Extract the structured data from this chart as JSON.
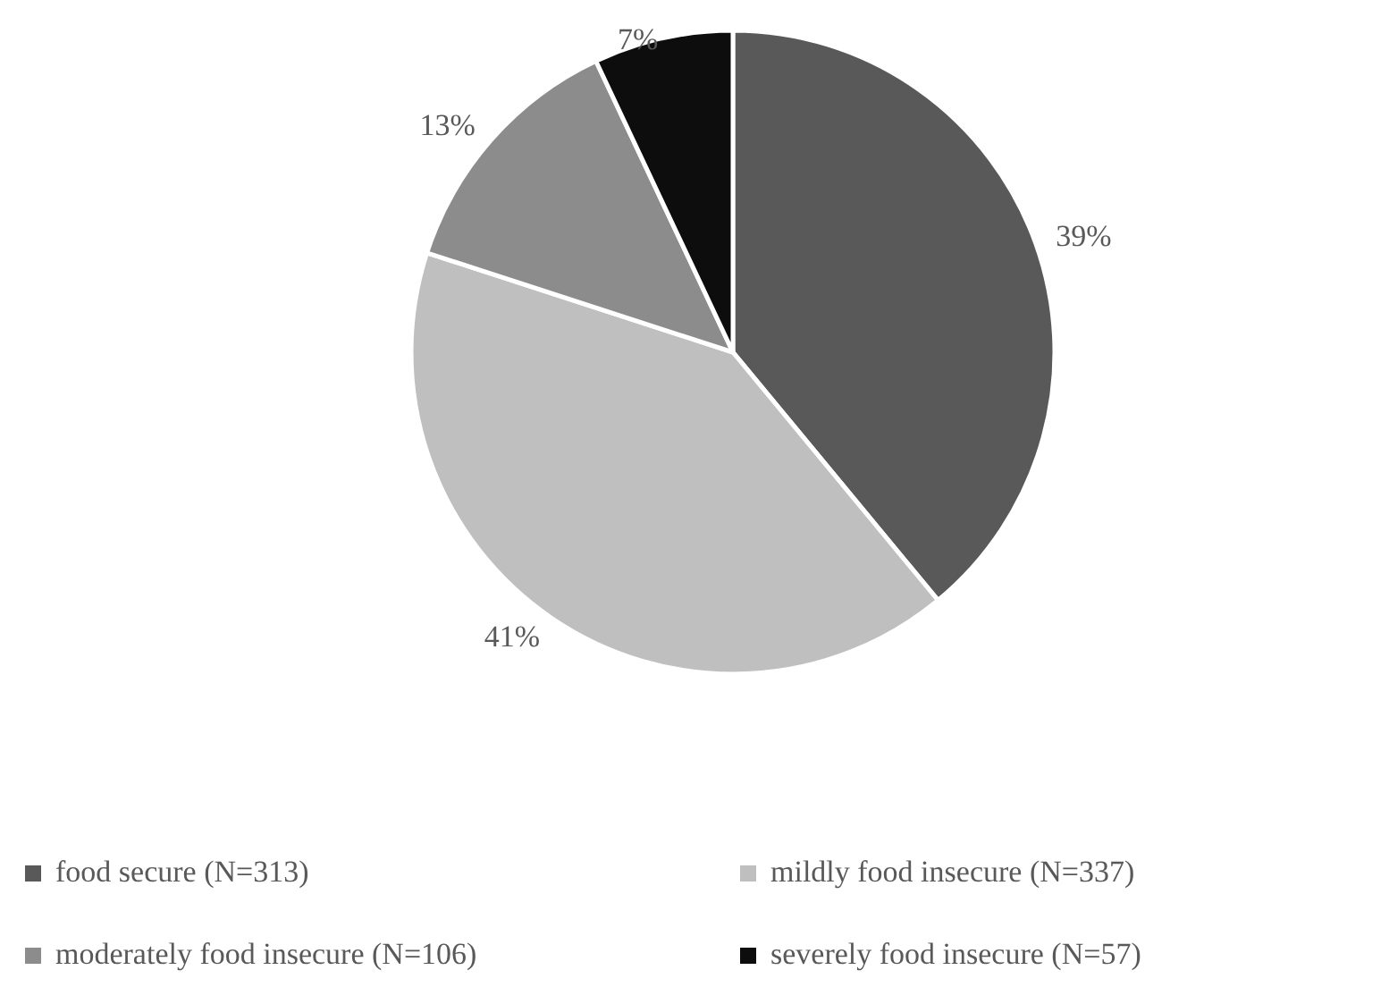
{
  "chart_data": {
    "type": "pie",
    "categories": [
      "food secure (N=313)",
      "mildly food insecure (N=337)",
      "moderately food insecure (N=106)",
      "severely food insecure (N=57)"
    ],
    "values": [
      39,
      41,
      13,
      7
    ],
    "value_labels": [
      "39%",
      "41%",
      "13%",
      "7%"
    ],
    "colors": [
      "#595959",
      "#bfbfbf",
      "#8c8c8c",
      "#0d0d0d"
    ],
    "legend": "bottom"
  }
}
